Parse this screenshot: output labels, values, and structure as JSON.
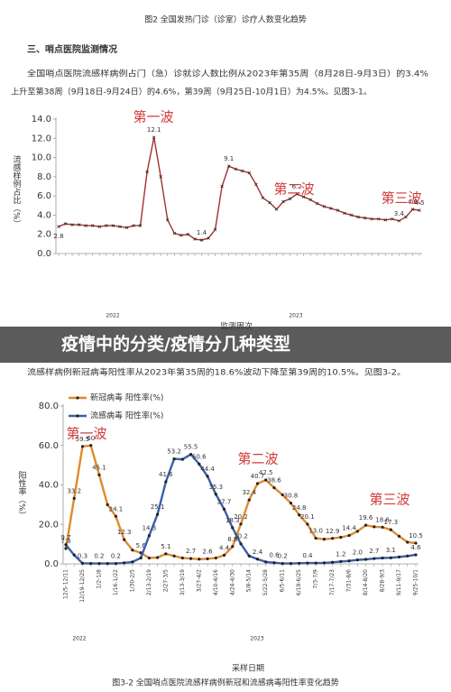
{
  "caption_top": "图2 全国发热门诊（诊室）诊疗人数变化趋势",
  "section_heading": "三、哨点医院监测情况",
  "paragraphs": [
    [
      "全国哨点医院流感样病例占门（急）诊就诊人数比例从2023年第35周（8月28日-9月3日）的3.4%",
      "上升至第38周（9月18日-9月24日）的4.6%，第39周（9月25日-10月1日）为4.5%。见图3-1。"
    ],
    [
      "流感样病例新冠病毒阳性率从2023年第35周的18.6%波动下降至第39周的10.5%。见图3-2。"
    ]
  ],
  "banner": "疫情中的分类/疫情分几种类型",
  "chart_data": [
    {
      "type": "line",
      "ylabel": "流感样例占比（%）",
      "xlabel": "监测周次",
      "year_labels": [
        "2022",
        "2023"
      ],
      "annotations": [
        "第一波",
        "第二波",
        "第三波"
      ],
      "color": "#a3302f",
      "annotation_color": "#d33a3a",
      "ylim": [
        0,
        14
      ],
      "yticks": [
        {
          "value": 0,
          "label": "0.0"
        },
        {
          "value": 2,
          "label": "2.0"
        },
        {
          "value": 4,
          "label": "4.0"
        },
        {
          "value": 6,
          "label": "6.0"
        },
        {
          "value": 8,
          "label": "8.0"
        },
        {
          "value": 10,
          "label": "10.0"
        },
        {
          "value": 12,
          "label": "12.0"
        },
        {
          "value": 14,
          "label": "14.0"
        }
      ],
      "series": [
        {
          "name": null,
          "color": "#a3302f",
          "values": [
            2.8,
            3.1,
            3.0,
            3.0,
            2.9,
            2.9,
            2.8,
            2.9,
            2.9,
            2.8,
            2.7,
            2.9,
            2.9,
            8.5,
            12.1,
            8.0,
            3.5,
            2.1,
            1.9,
            2.0,
            1.5,
            1.4,
            1.6,
            2.5,
            7.0,
            9.1,
            8.8,
            8.6,
            8.4,
            7.2,
            5.8,
            5.3,
            4.6,
            5.4,
            5.7,
            6.2,
            5.9,
            5.6,
            5.2,
            4.9,
            4.7,
            4.5,
            4.2,
            4.0,
            3.8,
            3.7,
            3.6,
            3.6,
            3.5,
            3.6,
            3.4,
            3.8,
            4.6,
            4.5
          ],
          "value_labels": [
            "2.8",
            null,
            null,
            null,
            null,
            null,
            null,
            null,
            null,
            null,
            null,
            null,
            null,
            null,
            "12.1",
            null,
            null,
            null,
            null,
            null,
            null,
            "1.4",
            null,
            null,
            null,
            "9.1",
            null,
            null,
            null,
            null,
            null,
            null,
            null,
            null,
            null,
            "6.2",
            null,
            null,
            null,
            null,
            null,
            null,
            null,
            null,
            null,
            null,
            null,
            null,
            null,
            null,
            "3.4",
            null,
            "4.6",
            "4.5"
          ]
        }
      ]
    },
    {
      "type": "line",
      "ylabel": "阳性率（%）",
      "xlabel": "采样日期",
      "caption": "图3-2 全国哨点医院流感样病例新冠和流感病毒阳性率变化趋势",
      "year_labels": [
        "2022",
        "2023"
      ],
      "annotations": [
        "第一波",
        "第二波",
        "第三波"
      ],
      "annotation_color": "#d33a3a",
      "ylim": [
        0,
        80
      ],
      "yticks": [
        {
          "value": 0,
          "label": "0.0"
        },
        {
          "value": 20,
          "label": "20.0"
        },
        {
          "value": 40,
          "label": "40.0"
        },
        {
          "value": 60,
          "label": "60.0"
        },
        {
          "value": 80,
          "label": "80.0"
        }
      ],
      "categories": [
        "12/5-12/11",
        null,
        "12/19-12/25",
        null,
        "1/2-1/8",
        null,
        "1/16-1/22",
        null,
        "1/30-2/5",
        null,
        "2/13-2/19",
        null,
        "2/27-3/5",
        null,
        "3/13-3/19",
        null,
        "3/27-4/2",
        null,
        "4/10-4/16",
        null,
        "4/24-4/30",
        null,
        "5/8-5/14",
        null,
        "5/22-5/28",
        null,
        "6/5-6/11",
        null,
        "6/19-6/25",
        null,
        "7/3-7/9",
        null,
        "7/17-7/23",
        null,
        "7/31-8/6",
        null,
        "8/14-8/20",
        null,
        "8/28-9/3",
        null,
        "9/11-9/17",
        null,
        "9/25-10/1"
      ],
      "series": [
        {
          "name": "新冠病毒 阳性率(%)",
          "color": "#e08a2c",
          "values": [
            7.8,
            33.2,
            59.5,
            60,
            45.1,
            30,
            24.1,
            12.3,
            7,
            5.6,
            3,
            3.2,
            5.1,
            4,
            3,
            2.7,
            2.4,
            2.6,
            3,
            4.4,
            8.8,
            20.2,
            32.4,
            40.7,
            42.5,
            38.6,
            35,
            30.8,
            24.8,
            20.1,
            13.0,
            12.5,
            12.9,
            13.5,
            14.4,
            16.5,
            19.6,
            18.8,
            18.6,
            17.3,
            14,
            11,
            10.5
          ],
          "value_labels": [
            "7.8",
            "33.2",
            "59.5",
            "60",
            "45.1",
            null,
            "24.1",
            "12.3",
            null,
            "5.6",
            null,
            null,
            "5.1",
            null,
            null,
            "2.7",
            null,
            "2.6",
            null,
            "4.4",
            "8.8",
            "20.2",
            "32.4",
            "40.7",
            "42.5",
            "38.6",
            null,
            "30.8",
            "24.8",
            "20.1",
            "13.0",
            null,
            "12.9",
            null,
            "14.4",
            null,
            "19.6",
            null,
            "18.6",
            "17.3",
            null,
            null,
            "10.5"
          ]
        },
        {
          "name": "流感病毒 阳性率(%)",
          "color": "#3b5ea9",
          "values": [
            9.7,
            4.5,
            0.3,
            0.2,
            0.2,
            0.2,
            0.2,
            0.5,
            1,
            3,
            14.3,
            25.1,
            41.6,
            53.2,
            53,
            55.5,
            50.6,
            44.4,
            35.3,
            27.7,
            18.3,
            10.2,
            4,
            2.4,
            1,
            0.6,
            0.2,
            0.2,
            0.3,
            0.4,
            0.4,
            0.5,
            0.8,
            1.2,
            1.5,
            2.0,
            2.3,
            2.7,
            3.0,
            3.1,
            3.5,
            4.0,
            4.6
          ],
          "value_labels": [
            "9.7",
            null,
            "0.3",
            null,
            "0.2",
            null,
            "0.2",
            null,
            null,
            null,
            "14.3",
            "25.1",
            "41.6",
            "53.2",
            null,
            "55.5",
            "50.6",
            "44.4",
            "35.3",
            "27.7",
            "18.3",
            "10.2",
            null,
            "2.4",
            null,
            "0.6",
            "0.2",
            null,
            null,
            "0.4",
            null,
            null,
            null,
            "1.2",
            null,
            "2.0",
            null,
            "2.7",
            null,
            "3.1",
            null,
            null,
            "4.6"
          ]
        }
      ]
    }
  ]
}
